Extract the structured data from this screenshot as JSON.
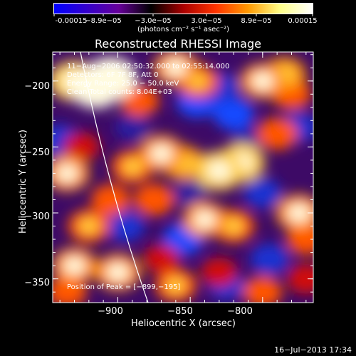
{
  "colorbar": {
    "tick_labels": [
      "-0.00015",
      "−8.9e−05",
      "−3.0e−05",
      "3.0e−05",
      "8.9e−05",
      "0.00015"
    ],
    "units": "(photons cm⁻² s⁻¹ asec⁻²)",
    "colors": [
      "#0000ff",
      "#3300cc",
      "#660099",
      "#000000",
      "#aa0000",
      "#ff3300",
      "#ff9900",
      "#ffff88",
      "#ffffff"
    ]
  },
  "chart_data": {
    "type": "heatmap",
    "title": "Reconstructed RHESSI Image",
    "xlabel": "Heliocentric X (arcsec)",
    "ylabel": "Heliocentric Y (arcsec)",
    "xlim": [
      -945,
      -765
    ],
    "ylim": [
      -368,
      -178
    ],
    "x_ticks": [
      -900,
      -850,
      -800
    ],
    "y_ticks": [
      -200,
      -250,
      -300,
      -350
    ],
    "x_tick_labels": [
      "−900",
      "−850",
      "−800"
    ],
    "y_tick_labels": [
      "−200",
      "−250",
      "−300",
      "−350"
    ],
    "peak": [
      -899,
      -195
    ],
    "annotations": [
      "11−Aug−2006 02:50:32.000 to 02:55:14.000",
      "Detectors: 6F 7F 8F, Att 0",
      "Energy Range: 25.0 − 50.0 keV",
      "Clean    Total counts: 8.04E+03"
    ],
    "peak_label": "Position of Peak = [−899,−195]",
    "blobs": [
      {
        "x": -930,
        "y": -200,
        "v": 0.9
      },
      {
        "x": -915,
        "y": -205,
        "v": 0.95
      },
      {
        "x": -905,
        "y": -198,
        "v": 1.0
      },
      {
        "x": -885,
        "y": -215,
        "v": 0.5
      },
      {
        "x": -860,
        "y": -190,
        "v": 0.7
      },
      {
        "x": -845,
        "y": -200,
        "v": 0.6
      },
      {
        "x": -800,
        "y": -200,
        "v": 0.7
      },
      {
        "x": -785,
        "y": -195,
        "v": 0.65
      },
      {
        "x": -780,
        "y": -210,
        "v": 0.5
      },
      {
        "x": -935,
        "y": -270,
        "v": 0.7
      },
      {
        "x": -925,
        "y": -250,
        "v": 0.4
      },
      {
        "x": -890,
        "y": -265,
        "v": 0.6
      },
      {
        "x": -870,
        "y": -255,
        "v": 0.75
      },
      {
        "x": -855,
        "y": -262,
        "v": 0.65
      },
      {
        "x": -830,
        "y": -268,
        "v": 0.85
      },
      {
        "x": -815,
        "y": -262,
        "v": 0.8
      },
      {
        "x": -790,
        "y": -240,
        "v": 0.55
      },
      {
        "x": -920,
        "y": -310,
        "v": 0.6
      },
      {
        "x": -905,
        "y": -290,
        "v": 0.5
      },
      {
        "x": -875,
        "y": -290,
        "v": 0.55
      },
      {
        "x": -840,
        "y": -305,
        "v": 0.7
      },
      {
        "x": -820,
        "y": -310,
        "v": 0.6
      },
      {
        "x": -775,
        "y": -300,
        "v": 0.75
      },
      {
        "x": -770,
        "y": -320,
        "v": 0.5
      },
      {
        "x": -930,
        "y": -340,
        "v": 0.7
      },
      {
        "x": -900,
        "y": -345,
        "v": 0.75
      },
      {
        "x": -870,
        "y": -335,
        "v": 0.4
      },
      {
        "x": -860,
        "y": -355,
        "v": 0.6
      },
      {
        "x": -830,
        "y": -345,
        "v": 0.4
      },
      {
        "x": -800,
        "y": -360,
        "v": 0.5
      },
      {
        "x": -935,
        "y": -360,
        "v": 0.5
      },
      {
        "x": -770,
        "y": -350,
        "v": 0.45
      },
      {
        "x": -845,
        "y": -215,
        "v": -0.6
      },
      {
        "x": -830,
        "y": -205,
        "v": -0.5
      },
      {
        "x": -820,
        "y": -225,
        "v": -0.55
      },
      {
        "x": -890,
        "y": -235,
        "v": -0.35
      },
      {
        "x": -940,
        "y": -245,
        "v": -0.5
      },
      {
        "x": -895,
        "y": -310,
        "v": -0.5
      },
      {
        "x": -855,
        "y": -320,
        "v": -0.55
      },
      {
        "x": -800,
        "y": -285,
        "v": -0.45
      },
      {
        "x": -795,
        "y": -335,
        "v": -0.5
      },
      {
        "x": -850,
        "y": -285,
        "v": -0.3
      },
      {
        "x": -775,
        "y": -235,
        "v": -0.45
      },
      {
        "x": -810,
        "y": -245,
        "v": -0.3
      },
      {
        "x": -825,
        "y": -355,
        "v": -0.4
      }
    ]
  },
  "footer": {
    "date": "16−Jul−2013 17:34"
  }
}
